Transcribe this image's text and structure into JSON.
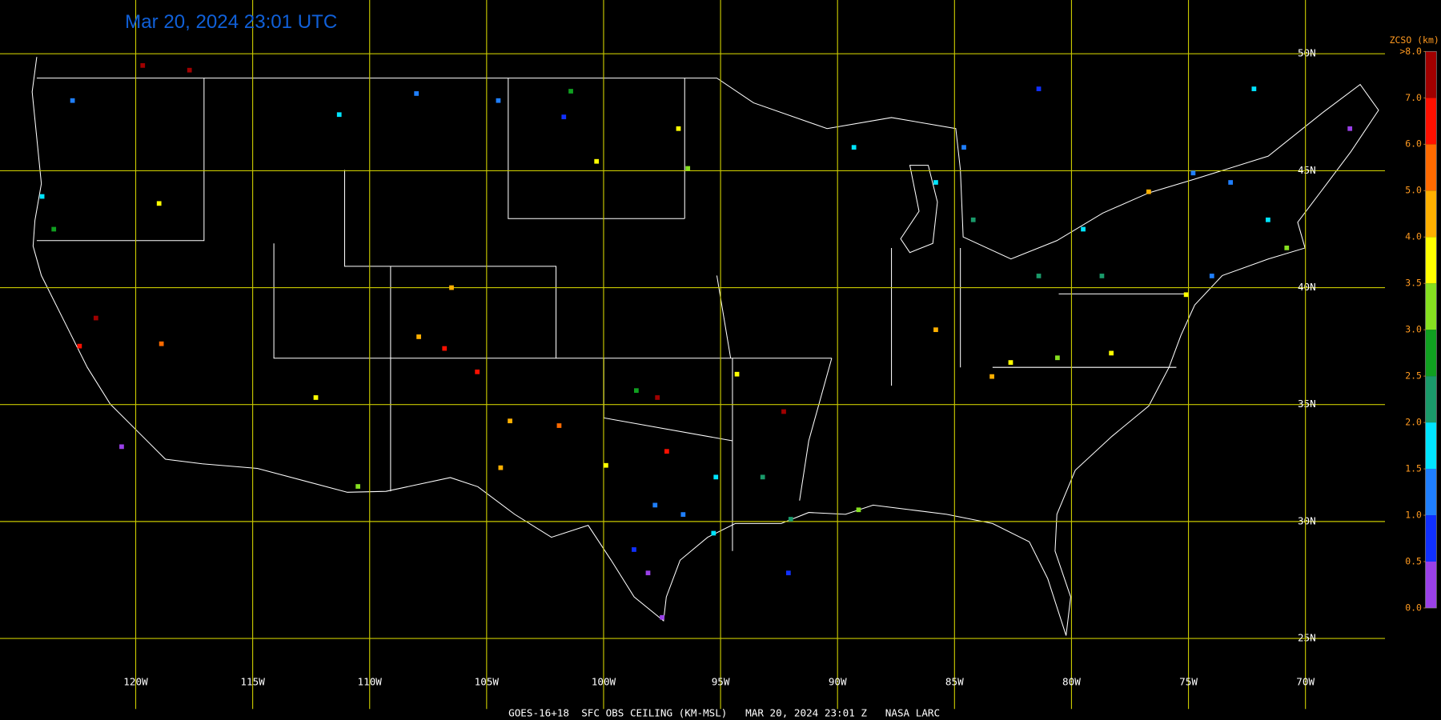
{
  "title": "Mar 20, 2024 23:01 UTC",
  "footer": "GOES-16+18  SFC OBS CEILING (KM-MSL)   MAR 20, 2024 23:01 Z   NASA LARC",
  "map": {
    "xlim": [
      -125.8,
      -66.6
    ],
    "ylim": [
      22.1,
      52.3
    ],
    "lat_ticks": [
      {
        "value": 50,
        "label": "50N"
      },
      {
        "value": 45,
        "label": "45N"
      },
      {
        "value": 40,
        "label": "40N"
      },
      {
        "value": 35,
        "label": "35N"
      },
      {
        "value": 30,
        "label": "30N"
      },
      {
        "value": 25,
        "label": "25N"
      }
    ],
    "lon_ticks": [
      {
        "value": -120,
        "label": "120W"
      },
      {
        "value": -115,
        "label": "115W"
      },
      {
        "value": -110,
        "label": "110W"
      },
      {
        "value": -105,
        "label": "105W"
      },
      {
        "value": -100,
        "label": "100W"
      },
      {
        "value": -95,
        "label": "95W"
      },
      {
        "value": -90,
        "label": "90W"
      },
      {
        "value": -85,
        "label": "85W"
      },
      {
        "value": -80,
        "label": "80W"
      },
      {
        "value": -75,
        "label": "75W"
      },
      {
        "value": -70,
        "label": "70W"
      }
    ]
  },
  "colorbar": {
    "title": "ZCSO (km)",
    "ticks": [
      {
        "value": 0,
        "label": "0.0"
      },
      0.5,
      {
        "value": 1,
        "label": "1.0"
      },
      1.5,
      {
        "value": 2,
        "label": "2.0"
      },
      2.5,
      {
        "value": 3,
        "label": "3.0"
      },
      3.5,
      {
        "value": 4,
        "label": "4.0"
      },
      {
        "value": 5,
        "label": "5.0"
      },
      {
        "value": 6,
        "label": "6.0"
      },
      {
        "value": 7,
        "label": "7.0"
      },
      {
        "value": 8,
        "label": ">8.0"
      }
    ],
    "colors": [
      "#9a40e8",
      "#1030ff",
      "#1f7fff",
      "#00e4ff",
      "#1a9a6a",
      "#10a020",
      "#86e020",
      "#ffff00",
      "#ffb000",
      "#ff6a00",
      "#ff1000",
      "#a00000"
    ]
  },
  "stations": {
    "lon": [
      -122.7,
      -124.0,
      -123.5,
      -121.7,
      -122.4,
      -118.9,
      -120.6,
      -119.0,
      -112.3,
      -110.5,
      -106.5,
      -106.8,
      -107.9,
      -105.4,
      -104.0,
      -101.9,
      -104.4,
      -99.9,
      -98.6,
      -97.7,
      -94.3,
      -92.3,
      -97.3,
      -97.8,
      -95.2,
      -98.7,
      -98.1,
      -97.5,
      -96.6,
      -95.3,
      -93.2,
      -92.0,
      -89.1,
      -92.1,
      -104.5,
      -101.4,
      -101.7,
      -100.3,
      -96.4,
      -96.8,
      -108.0,
      -111.3,
      -117.7,
      -119.7,
      -84.6,
      -85.8,
      -84.2,
      -81.4,
      -78.7,
      -79.5,
      -76.7,
      -74.8,
      -73.2,
      -71.6,
      -74.0,
      -75.1,
      -70.8,
      -68.1,
      -85.8,
      -82.6,
      -80.6,
      -83.4,
      -89.3,
      -81.4,
      -72.2,
      -78.3
    ],
    "lat": [
      48.0,
      43.9,
      42.5,
      38.7,
      37.5,
      37.6,
      33.2,
      43.6,
      35.3,
      31.5,
      40.0,
      37.4,
      37.9,
      36.4,
      34.3,
      34.1,
      32.3,
      32.4,
      35.6,
      35.3,
      36.3,
      34.7,
      33.0,
      30.7,
      31.9,
      28.8,
      27.8,
      25.9,
      30.3,
      29.5,
      31.9,
      30.1,
      30.5,
      27.8,
      48.0,
      48.4,
      47.3,
      45.4,
      45.1,
      46.8,
      48.3,
      47.4,
      49.3,
      49.5,
      46.0,
      44.5,
      42.9,
      40.5,
      40.5,
      42.5,
      44.1,
      44.9,
      44.5,
      42.9,
      40.5,
      39.7,
      41.7,
      46.8,
      38.2,
      36.8,
      37.0,
      36.2,
      46.0,
      48.5,
      48.5,
      37.2
    ],
    "ceiling": [
      1.2,
      1.7,
      2.8,
      7.5,
      6.2,
      5.8,
      0.3,
      3.8,
      3.9,
      3.2,
      4.6,
      6.1,
      4.6,
      6.2,
      4.8,
      5.0,
      4.6,
      3.9,
      2.8,
      7.2,
      3.6,
      7.4,
      6.3,
      1.2,
      1.8,
      0.8,
      0.3,
      0.4,
      1.1,
      1.7,
      2.3,
      2.4,
      3.1,
      0.7,
      1.2,
      2.9,
      0.9,
      3.8,
      3.3,
      3.7,
      1.0,
      1.7,
      7.3,
      7.6,
      1.2,
      1.8,
      2.3,
      2.2,
      2.4,
      1.9,
      4.6,
      1.0,
      1.3,
      1.7,
      1.1,
      3.5,
      3.4,
      0.4,
      4.8,
      3.8,
      3.2,
      4.9,
      1.8,
      0.9,
      1.7,
      3.6
    ]
  }
}
